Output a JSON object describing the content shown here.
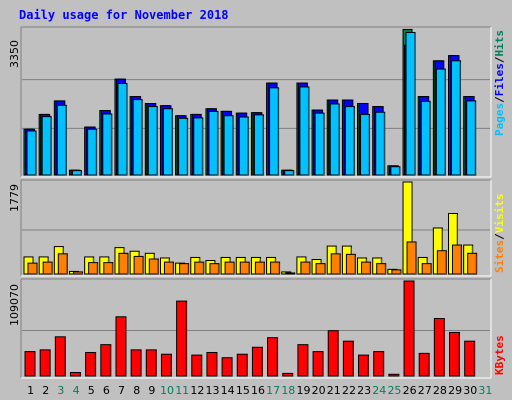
{
  "chart_data": [
    {
      "type": "bar",
      "title": "Daily usage for November 2018",
      "y_max_label": "3350",
      "ylim": [
        0,
        3350
      ],
      "legend": [
        "Pages",
        "/",
        "Files",
        "/",
        "Hits"
      ],
      "categories": [
        "1",
        "2",
        "3",
        "4",
        "5",
        "6",
        "7",
        "8",
        "9",
        "10",
        "11",
        "12",
        "13",
        "14",
        "15",
        "16",
        "17",
        "18",
        "19",
        "20",
        "21",
        "22",
        "23",
        "24",
        "25",
        "26",
        "27",
        "28",
        "29",
        "30",
        "31"
      ],
      "series": [
        {
          "name": "Hits",
          "color": "#008040",
          "values": [
            1050,
            1390,
            1700,
            110,
            1100,
            1480,
            2200,
            1800,
            1640,
            1590,
            1360,
            1390,
            1520,
            1460,
            1420,
            1430,
            2110,
            110,
            2110,
            1490,
            1720,
            1720,
            1640,
            1570,
            210,
            3340,
            1800,
            2620,
            2740,
            1800,
            0
          ]
        },
        {
          "name": "Files",
          "color": "#0000FF",
          "values": [
            1050,
            1390,
            1700,
            110,
            1100,
            1480,
            2200,
            1800,
            1640,
            1590,
            1360,
            1390,
            1520,
            1460,
            1420,
            1430,
            2110,
            110,
            2110,
            1490,
            1720,
            1720,
            1640,
            1570,
            210,
            2980,
            1800,
            2620,
            2740,
            1800,
            0
          ]
        },
        {
          "name": "Pages",
          "color": "#00C0FF",
          "values": [
            1010,
            1340,
            1600,
            100,
            1050,
            1400,
            2100,
            1730,
            1570,
            1520,
            1300,
            1310,
            1460,
            1360,
            1330,
            1380,
            2000,
            100,
            2020,
            1420,
            1630,
            1570,
            1390,
            1440,
            190,
            3270,
            1690,
            2430,
            2620,
            1700,
            0
          ]
        }
      ]
    },
    {
      "type": "bar",
      "y_max_label": "1779",
      "ylim": [
        0,
        1779
      ],
      "legend": [
        "Sites",
        "/",
        "Visits"
      ],
      "categories": [
        "1",
        "2",
        "3",
        "4",
        "5",
        "6",
        "7",
        "8",
        "9",
        "10",
        "11",
        "12",
        "13",
        "14",
        "15",
        "16",
        "17",
        "18",
        "19",
        "20",
        "21",
        "22",
        "23",
        "24",
        "25",
        "26",
        "27",
        "28",
        "29",
        "30",
        "31"
      ],
      "series": [
        {
          "name": "Visits",
          "color": "#FFFF00",
          "values": [
            330,
            330,
            530,
            50,
            330,
            330,
            510,
            440,
            400,
            310,
            210,
            320,
            260,
            320,
            320,
            320,
            320,
            40,
            330,
            280,
            540,
            540,
            310,
            310,
            90,
            1779,
            320,
            890,
            1170,
            560,
            0
          ]
        },
        {
          "name": "Sites",
          "color": "#FF8000",
          "values": [
            210,
            230,
            390,
            40,
            220,
            220,
            400,
            340,
            290,
            230,
            200,
            230,
            200,
            230,
            230,
            230,
            230,
            20,
            230,
            200,
            390,
            380,
            230,
            200,
            80,
            620,
            200,
            450,
            560,
            400,
            0
          ]
        }
      ]
    },
    {
      "type": "bar",
      "y_max_label": "109070",
      "ylim": [
        0,
        109070
      ],
      "legend": [
        "KBytes"
      ],
      "categories": [
        "1",
        "2",
        "3",
        "4",
        "5",
        "6",
        "7",
        "8",
        "9",
        "10",
        "11",
        "12",
        "13",
        "14",
        "15",
        "16",
        "17",
        "18",
        "19",
        "20",
        "21",
        "22",
        "23",
        "24",
        "25",
        "26",
        "27",
        "28",
        "29",
        "30",
        "31"
      ],
      "series": [
        {
          "name": "KBytes",
          "color": "#FF0000",
          "values": [
            28000,
            30000,
            45000,
            4000,
            27000,
            36000,
            68000,
            30000,
            30000,
            25000,
            86000,
            24000,
            27000,
            21000,
            25000,
            33000,
            44000,
            3000,
            36000,
            28000,
            52000,
            40000,
            24000,
            28000,
            2000,
            109070,
            26000,
            66000,
            50000,
            40000,
            0
          ]
        }
      ]
    }
  ],
  "colors": {
    "background": "#C0C0C0",
    "title": "#0000FF",
    "axis_label": "#000000",
    "weekend_label": "#00805C",
    "weekday_label": "#000000",
    "legend_pages": "#00C0FF",
    "legend_files": "#0000FF",
    "legend_hits": "#00805C",
    "legend_sites": "#FF8000",
    "legend_visits": "#FFFF00",
    "legend_kbytes": "#FF0000",
    "legend_slash": "#000000"
  },
  "weekend_days": [
    "3",
    "4",
    "10",
    "11",
    "17",
    "18",
    "24",
    "25",
    "31"
  ]
}
